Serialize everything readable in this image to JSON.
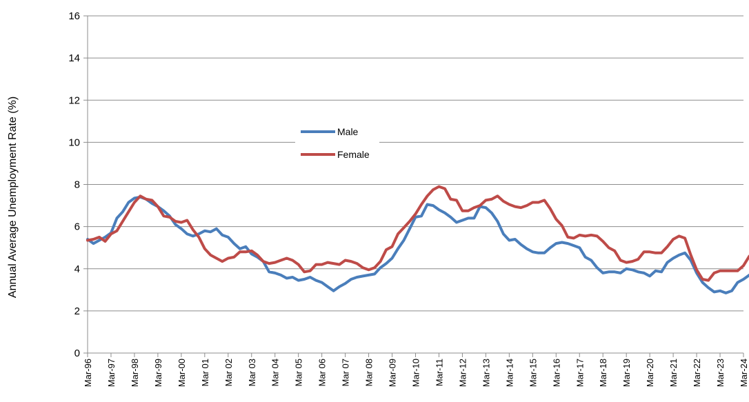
{
  "chart_data": {
    "type": "line",
    "ylabel": "Annual  Average Unemployment Rate (%)",
    "ylim": [
      0,
      16
    ],
    "yticks": [
      0,
      2,
      4,
      6,
      8,
      10,
      12,
      14,
      16
    ],
    "grid": "horizontal",
    "legend_position": "upper-center",
    "x_tick_labels": [
      "Mar-96",
      "Mar-97",
      "Mar-98",
      "Mar-99",
      "Mar-00",
      "Mar 01",
      "Mar 02",
      "Mar 03",
      "Mar 04",
      "Mar 05",
      "Mar 06",
      "Mar 07",
      "Mar 08",
      "Mar-09",
      "Mar-10",
      "Mar-11",
      "Mar-12",
      "Mar-13",
      "Mar-14",
      "Mar-15",
      "Mar-16",
      "Mar-17",
      "Mar-18",
      "Mar-19",
      "Mar-20",
      "Mar-21",
      "Mar-22",
      "Mar-23",
      "Mar-24"
    ],
    "series": [
      {
        "name": "Male",
        "color": "#4a7ebb",
        "points": [
          [
            0,
            5.4
          ],
          [
            0.25,
            5.2
          ],
          [
            0.5,
            5.35
          ],
          [
            0.75,
            5.5
          ],
          [
            1,
            5.7
          ],
          [
            1.25,
            6.4
          ],
          [
            1.5,
            6.7
          ],
          [
            1.75,
            7.15
          ],
          [
            2,
            7.35
          ],
          [
            2.25,
            7.4
          ],
          [
            2.5,
            7.3
          ],
          [
            2.75,
            7.1
          ],
          [
            3,
            6.95
          ],
          [
            3.25,
            6.75
          ],
          [
            3.5,
            6.5
          ],
          [
            3.75,
            6.1
          ],
          [
            4,
            5.9
          ],
          [
            4.25,
            5.65
          ],
          [
            4.5,
            5.55
          ],
          [
            4.75,
            5.65
          ],
          [
            5,
            5.8
          ],
          [
            5.25,
            5.75
          ],
          [
            5.5,
            5.9
          ],
          [
            5.75,
            5.6
          ],
          [
            6,
            5.5
          ],
          [
            6.25,
            5.2
          ],
          [
            6.5,
            4.95
          ],
          [
            6.75,
            5.05
          ],
          [
            7,
            4.7
          ],
          [
            7.25,
            4.55
          ],
          [
            7.5,
            4.35
          ],
          [
            7.75,
            3.85
          ],
          [
            8,
            3.8
          ],
          [
            8.25,
            3.7
          ],
          [
            8.5,
            3.55
          ],
          [
            8.75,
            3.6
          ],
          [
            9,
            3.45
          ],
          [
            9.25,
            3.5
          ],
          [
            9.5,
            3.6
          ],
          [
            9.75,
            3.45
          ],
          [
            10,
            3.35
          ],
          [
            10.25,
            3.15
          ],
          [
            10.5,
            2.95
          ],
          [
            10.75,
            3.15
          ],
          [
            11,
            3.3
          ],
          [
            11.25,
            3.5
          ],
          [
            11.5,
            3.6
          ],
          [
            11.75,
            3.65
          ],
          [
            12,
            3.7
          ],
          [
            12.25,
            3.75
          ],
          [
            12.5,
            4.05
          ],
          [
            12.75,
            4.25
          ],
          [
            13,
            4.5
          ],
          [
            13.25,
            4.95
          ],
          [
            13.5,
            5.35
          ],
          [
            13.75,
            5.9
          ],
          [
            14,
            6.45
          ],
          [
            14.25,
            6.5
          ],
          [
            14.5,
            7.05
          ],
          [
            14.75,
            7.0
          ],
          [
            15,
            6.8
          ],
          [
            15.25,
            6.65
          ],
          [
            15.5,
            6.45
          ],
          [
            15.75,
            6.2
          ],
          [
            16,
            6.3
          ],
          [
            16.25,
            6.4
          ],
          [
            16.5,
            6.4
          ],
          [
            16.75,
            6.95
          ],
          [
            17,
            6.9
          ],
          [
            17.25,
            6.65
          ],
          [
            17.5,
            6.25
          ],
          [
            17.75,
            5.65
          ],
          [
            18,
            5.35
          ],
          [
            18.25,
            5.4
          ],
          [
            18.5,
            5.15
          ],
          [
            18.75,
            4.95
          ],
          [
            19,
            4.8
          ],
          [
            19.25,
            4.75
          ],
          [
            19.5,
            4.75
          ],
          [
            19.75,
            5.0
          ],
          [
            20,
            5.2
          ],
          [
            20.25,
            5.25
          ],
          [
            20.5,
            5.2
          ],
          [
            20.75,
            5.1
          ],
          [
            21,
            5.0
          ],
          [
            21.25,
            4.55
          ],
          [
            21.5,
            4.4
          ],
          [
            21.75,
            4.05
          ],
          [
            22,
            3.8
          ],
          [
            22.25,
            3.85
          ],
          [
            22.5,
            3.85
          ],
          [
            22.75,
            3.8
          ],
          [
            23,
            4.0
          ],
          [
            23.25,
            3.95
          ],
          [
            23.5,
            3.85
          ],
          [
            23.75,
            3.8
          ],
          [
            24,
            3.65
          ],
          [
            24.25,
            3.9
          ],
          [
            24.5,
            3.85
          ],
          [
            24.75,
            4.3
          ],
          [
            25,
            4.5
          ],
          [
            25.25,
            4.65
          ],
          [
            25.5,
            4.75
          ],
          [
            25.75,
            4.4
          ],
          [
            26,
            3.8
          ],
          [
            26.25,
            3.35
          ],
          [
            26.5,
            3.1
          ],
          [
            26.75,
            2.9
          ],
          [
            27,
            2.95
          ],
          [
            27.25,
            2.85
          ],
          [
            27.5,
            2.95
          ],
          [
            27.75,
            3.35
          ],
          [
            28,
            3.5
          ],
          [
            28.25,
            3.7
          ]
        ]
      },
      {
        "name": "Female",
        "color": "#be4b48",
        "points": [
          [
            0,
            5.35
          ],
          [
            0.25,
            5.4
          ],
          [
            0.5,
            5.5
          ],
          [
            0.75,
            5.3
          ],
          [
            1,
            5.65
          ],
          [
            1.25,
            5.8
          ],
          [
            1.5,
            6.25
          ],
          [
            1.75,
            6.7
          ],
          [
            2,
            7.15
          ],
          [
            2.25,
            7.45
          ],
          [
            2.5,
            7.3
          ],
          [
            2.75,
            7.25
          ],
          [
            3,
            6.95
          ],
          [
            3.25,
            6.5
          ],
          [
            3.5,
            6.45
          ],
          [
            3.75,
            6.25
          ],
          [
            4,
            6.2
          ],
          [
            4.25,
            6.3
          ],
          [
            4.5,
            5.85
          ],
          [
            4.75,
            5.5
          ],
          [
            5,
            4.95
          ],
          [
            5.25,
            4.65
          ],
          [
            5.5,
            4.5
          ],
          [
            5.75,
            4.35
          ],
          [
            6,
            4.5
          ],
          [
            6.25,
            4.55
          ],
          [
            6.5,
            4.8
          ],
          [
            6.75,
            4.8
          ],
          [
            7,
            4.85
          ],
          [
            7.25,
            4.65
          ],
          [
            7.5,
            4.35
          ],
          [
            7.75,
            4.25
          ],
          [
            8,
            4.3
          ],
          [
            8.25,
            4.4
          ],
          [
            8.5,
            4.5
          ],
          [
            8.75,
            4.4
          ],
          [
            9,
            4.2
          ],
          [
            9.25,
            3.85
          ],
          [
            9.5,
            3.9
          ],
          [
            9.75,
            4.2
          ],
          [
            10,
            4.2
          ],
          [
            10.25,
            4.3
          ],
          [
            10.5,
            4.25
          ],
          [
            10.75,
            4.2
          ],
          [
            11,
            4.4
          ],
          [
            11.25,
            4.35
          ],
          [
            11.5,
            4.25
          ],
          [
            11.75,
            4.05
          ],
          [
            12,
            3.95
          ],
          [
            12.25,
            4.05
          ],
          [
            12.5,
            4.35
          ],
          [
            12.75,
            4.9
          ],
          [
            13,
            5.05
          ],
          [
            13.25,
            5.65
          ],
          [
            13.5,
            5.95
          ],
          [
            13.75,
            6.25
          ],
          [
            14,
            6.6
          ],
          [
            14.25,
            7.05
          ],
          [
            14.5,
            7.45
          ],
          [
            14.75,
            7.75
          ],
          [
            15,
            7.9
          ],
          [
            15.25,
            7.8
          ],
          [
            15.5,
            7.3
          ],
          [
            15.75,
            7.25
          ],
          [
            16,
            6.75
          ],
          [
            16.25,
            6.75
          ],
          [
            16.5,
            6.9
          ],
          [
            16.75,
            7.0
          ],
          [
            17,
            7.25
          ],
          [
            17.25,
            7.3
          ],
          [
            17.5,
            7.45
          ],
          [
            17.75,
            7.2
          ],
          [
            18,
            7.05
          ],
          [
            18.25,
            6.95
          ],
          [
            18.5,
            6.9
          ],
          [
            18.75,
            7.0
          ],
          [
            19,
            7.15
          ],
          [
            19.25,
            7.15
          ],
          [
            19.5,
            7.25
          ],
          [
            19.75,
            6.85
          ],
          [
            20,
            6.35
          ],
          [
            20.25,
            6.05
          ],
          [
            20.5,
            5.5
          ],
          [
            20.75,
            5.45
          ],
          [
            21,
            5.6
          ],
          [
            21.25,
            5.55
          ],
          [
            21.5,
            5.6
          ],
          [
            21.75,
            5.55
          ],
          [
            22,
            5.3
          ],
          [
            22.25,
            5.0
          ],
          [
            22.5,
            4.85
          ],
          [
            22.75,
            4.4
          ],
          [
            23,
            4.3
          ],
          [
            23.25,
            4.35
          ],
          [
            23.5,
            4.45
          ],
          [
            23.75,
            4.8
          ],
          [
            24,
            4.8
          ],
          [
            24.25,
            4.75
          ],
          [
            24.5,
            4.75
          ],
          [
            24.75,
            5.05
          ],
          [
            25,
            5.4
          ],
          [
            25.25,
            5.55
          ],
          [
            25.5,
            5.45
          ],
          [
            25.75,
            4.65
          ],
          [
            26,
            3.95
          ],
          [
            26.25,
            3.5
          ],
          [
            26.5,
            3.45
          ],
          [
            26.75,
            3.8
          ],
          [
            27,
            3.9
          ],
          [
            27.25,
            3.9
          ],
          [
            27.5,
            3.9
          ],
          [
            27.75,
            3.9
          ],
          [
            28,
            4.15
          ],
          [
            28.25,
            4.6
          ]
        ]
      }
    ]
  }
}
